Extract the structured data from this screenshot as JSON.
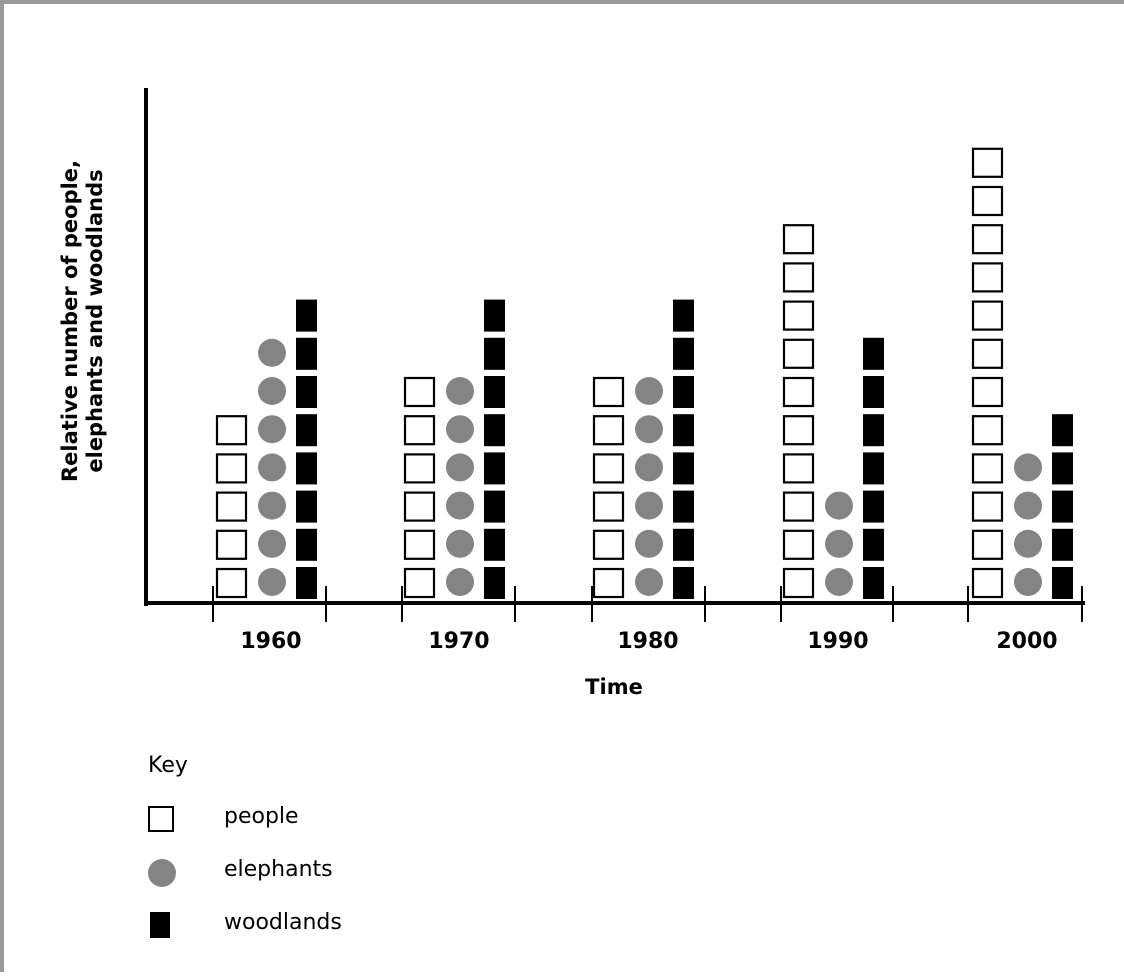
{
  "chart_data": {
    "type": "pictograph",
    "xlabel": "Time",
    "ylabel": [
      "Relative number of people,",
      "elephants and woodlands"
    ],
    "categories": [
      "1960",
      "1970",
      "1980",
      "1990",
      "2000"
    ],
    "series": [
      {
        "name": "people",
        "symbol": "square",
        "color": "#ffffff",
        "values": [
          5,
          6,
          6,
          10,
          12
        ]
      },
      {
        "name": "elephants",
        "symbol": "circle",
        "color": "#848484",
        "values": [
          7,
          6,
          6,
          3,
          4
        ]
      },
      {
        "name": "woodlands",
        "symbol": "block",
        "color": "#000000",
        "values": [
          8,
          8,
          8,
          7,
          5
        ]
      }
    ]
  },
  "key": {
    "title": "Key",
    "items": [
      {
        "label": "people",
        "symbol": "square"
      },
      {
        "label": "elephants",
        "symbol": "circle"
      },
      {
        "label": "woodlands",
        "symbol": "block"
      }
    ]
  }
}
